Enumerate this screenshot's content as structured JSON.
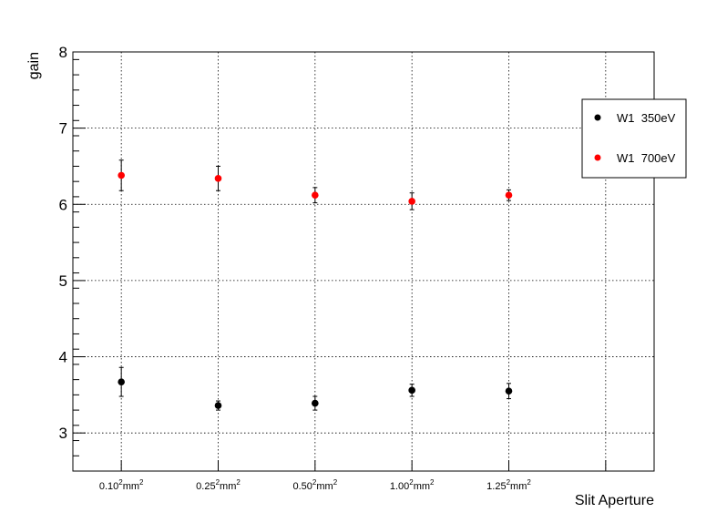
{
  "chart_data": {
    "type": "scatter",
    "xlabel": "Slit Aperture",
    "ylabel": "gain",
    "ylim": [
      2.5,
      8
    ],
    "y_ticks": [
      "3",
      "4",
      "5",
      "6",
      "7",
      "8"
    ],
    "categories": [
      {
        "base": "0.10",
        "sup1": "2",
        "unit": "mm",
        "sup2": "2"
      },
      {
        "base": "0.25",
        "sup1": "2",
        "unit": "mm",
        "sup2": "2"
      },
      {
        "base": "0.50",
        "sup1": "2",
        "unit": "mm",
        "sup2": "2"
      },
      {
        "base": "1.00",
        "sup1": "2",
        "unit": "mm",
        "sup2": "2"
      },
      {
        "base": "1.25",
        "sup1": "2",
        "unit": "mm",
        "sup2": "2"
      }
    ],
    "grid": true,
    "legend_position": "top-right",
    "series": [
      {
        "name": "W1  350eV",
        "color": "#000000",
        "values": [
          3.67,
          3.36,
          3.39,
          3.56,
          3.55
        ],
        "errors": [
          0.19,
          0.06,
          0.09,
          0.08,
          0.1
        ]
      },
      {
        "name": "W1  700eV",
        "color": "#ff0000",
        "values": [
          6.38,
          6.34,
          6.12,
          6.04,
          6.12
        ],
        "errors": [
          0.2,
          0.16,
          0.1,
          0.11,
          0.07
        ]
      }
    ]
  }
}
